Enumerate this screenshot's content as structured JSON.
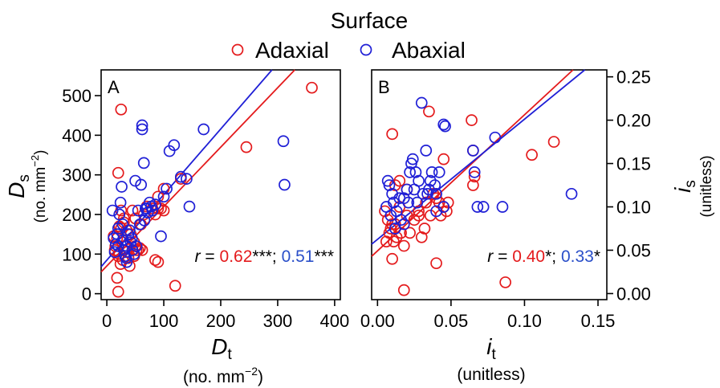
{
  "legend": {
    "title": "Surface",
    "items": [
      {
        "label": "Adaxial",
        "color": "#e41a1c"
      },
      {
        "label": "Abaxial",
        "color": "#1f1fd6"
      }
    ]
  },
  "colors": {
    "adaxial": "#e41a1c",
    "abaxial": "#1f1fd6",
    "stat_abaxial": "#2a4fc9"
  },
  "chart_data": [
    {
      "type": "scatter",
      "panel_label": "A",
      "xlabel": "D",
      "xlabel_sub": "t",
      "xunit": "(no. mm",
      "xunit_sup": "−2",
      "xunit_end": ")",
      "ylabel": "D",
      "ylabel_sub": "s",
      "yunit": "(no. mm",
      "yunit_sup": "−2",
      "yunit_end": ")",
      "xlim": [
        -10,
        410
      ],
      "ylim": [
        -15,
        565
      ],
      "xticks": [
        0,
        100,
        200,
        300,
        400
      ],
      "yticks": [
        0,
        100,
        200,
        300,
        400,
        500
      ],
      "xtick_labels": [
        "0",
        "100",
        "200",
        "300",
        "400"
      ],
      "ytick_labels": [
        "0",
        "100",
        "200",
        "300",
        "400",
        "500"
      ],
      "stats": {
        "r_label": "r",
        "eq": " = ",
        "adaxial": "0.62",
        "adaxial_sig": "***",
        "sep": "; ",
        "abaxial": "0.51",
        "abaxial_sig": "***"
      },
      "series": [
        {
          "name": "Adaxial",
          "color": "#e41a1c",
          "fit": [
            [
              -10,
              55
            ],
            [
              330,
              565
            ]
          ],
          "points": [
            [
              12,
              145
            ],
            [
              14,
              110
            ],
            [
              15,
              120
            ],
            [
              18,
              140
            ],
            [
              20,
              95
            ],
            [
              22,
              100
            ],
            [
              24,
              75
            ],
            [
              25,
              165
            ],
            [
              27,
              130
            ],
            [
              28,
              85
            ],
            [
              30,
              110
            ],
            [
              32,
              120
            ],
            [
              35,
              105
            ],
            [
              38,
              90
            ],
            [
              40,
              70
            ],
            [
              42,
              150
            ],
            [
              45,
              110
            ],
            [
              48,
              95
            ],
            [
              50,
              120
            ],
            [
              52,
              110
            ],
            [
              55,
              110
            ],
            [
              18,
              40
            ],
            [
              20,
              5
            ],
            [
              25,
              465
            ],
            [
              20,
              305
            ],
            [
              25,
              210
            ],
            [
              22,
              170
            ],
            [
              30,
              190
            ],
            [
              35,
              160
            ],
            [
              45,
              210
            ],
            [
              50,
              190
            ],
            [
              60,
              175
            ],
            [
              65,
              200
            ],
            [
              70,
              220
            ],
            [
              80,
              215
            ],
            [
              85,
              200
            ],
            [
              90,
              215
            ],
            [
              95,
              215
            ],
            [
              100,
              210
            ],
            [
              90,
              245
            ],
            [
              100,
              265
            ],
            [
              120,
              20
            ],
            [
              130,
              290
            ],
            [
              85,
              85
            ],
            [
              90,
              80
            ],
            [
              245,
              370
            ],
            [
              360,
              520
            ],
            [
              30,
              180
            ],
            [
              38,
              150
            ],
            [
              48,
              130
            ],
            [
              58,
              115
            ],
            [
              62,
              110
            ]
          ]
        },
        {
          "name": "Abaxial",
          "color": "#1f1fd6",
          "fit": [
            [
              -10,
              68
            ],
            [
              290,
              565
            ]
          ],
          "points": [
            [
              10,
              210
            ],
            [
              12,
              140
            ],
            [
              14,
              105
            ],
            [
              16,
              125
            ],
            [
              18,
              150
            ],
            [
              20,
              165
            ],
            [
              22,
              200
            ],
            [
              24,
              230
            ],
            [
              26,
              270
            ],
            [
              28,
              175
            ],
            [
              30,
              110
            ],
            [
              32,
              95
            ],
            [
              34,
              90
            ],
            [
              35,
              80
            ],
            [
              38,
              150
            ],
            [
              40,
              160
            ],
            [
              42,
              130
            ],
            [
              45,
              110
            ],
            [
              48,
              100
            ],
            [
              50,
              285
            ],
            [
              55,
              210
            ],
            [
              60,
              275
            ],
            [
              62,
              425
            ],
            [
              62,
              415
            ],
            [
              65,
              330
            ],
            [
              68,
              215
            ],
            [
              70,
              215
            ],
            [
              72,
              205
            ],
            [
              75,
              230
            ],
            [
              78,
              220
            ],
            [
              80,
              210
            ],
            [
              85,
              225
            ],
            [
              95,
              145
            ],
            [
              100,
              245
            ],
            [
              105,
              265
            ],
            [
              110,
              360
            ],
            [
              118,
              375
            ],
            [
              130,
              295
            ],
            [
              140,
              290
            ],
            [
              145,
              220
            ],
            [
              170,
              415
            ],
            [
              310,
              385
            ],
            [
              312,
              275
            ],
            [
              20,
              120
            ],
            [
              28,
              135
            ],
            [
              35,
              120
            ],
            [
              44,
              140
            ],
            [
              52,
              120
            ],
            [
              58,
              175
            ],
            [
              66,
              185
            ]
          ]
        }
      ]
    },
    {
      "type": "scatter",
      "panel_label": "B",
      "xlabel": "i",
      "xlabel_sub": "t",
      "xunit": "(unitless)",
      "ylabel": "i",
      "ylabel_sub": "s",
      "yunit": "(unitless)",
      "xlim": [
        -0.004,
        0.156
      ],
      "ylim": [
        -0.007,
        0.258
      ],
      "xticks": [
        0,
        0.05,
        0.1,
        0.15
      ],
      "yticks": [
        0,
        0.05,
        0.1,
        0.15,
        0.2,
        0.25
      ],
      "xtick_labels": [
        "0.00",
        "0.05",
        "0.10",
        "0.15"
      ],
      "ytick_labels": [
        "0.00",
        "0.05",
        "0.10",
        "0.15",
        "0.20",
        "0.25"
      ],
      "stats": {
        "r_label": "r",
        "eq": " = ",
        "adaxial": "0.40",
        "adaxial_sig": "*",
        "sep": "; ",
        "abaxial": "0.33",
        "abaxial_sig": "*"
      },
      "series": [
        {
          "name": "Adaxial",
          "color": "#e41a1c",
          "fit": [
            [
              -0.004,
              0.043
            ],
            [
              0.133,
              0.258
            ]
          ],
          "points": [
            [
              0.005,
              0.095
            ],
            [
              0.006,
              0.06
            ],
            [
              0.007,
              0.085
            ],
            [
              0.008,
              0.07
            ],
            [
              0.009,
              0.075
            ],
            [
              0.01,
              0.08
            ],
            [
              0.01,
              0.04
            ],
            [
              0.01,
              0.184
            ],
            [
              0.011,
              0.06
            ],
            [
              0.012,
              0.125
            ],
            [
              0.012,
              0.08
            ],
            [
              0.013,
              0.065
            ],
            [
              0.015,
              0.13
            ],
            [
              0.015,
              0.1
            ],
            [
              0.016,
              0.07
            ],
            [
              0.018,
              0.004
            ],
            [
              0.018,
              0.055
            ],
            [
              0.02,
              0.09
            ],
            [
              0.022,
              0.07
            ],
            [
              0.025,
              0.085
            ],
            [
              0.028,
              0.095
            ],
            [
              0.03,
              0.065
            ],
            [
              0.032,
              0.075
            ],
            [
              0.033,
              0.105
            ],
            [
              0.035,
              0.21
            ],
            [
              0.036,
              0.09
            ],
            [
              0.038,
              0.115
            ],
            [
              0.04,
              0.11
            ],
            [
              0.042,
              0.105
            ],
            [
              0.043,
              0.09
            ],
            [
              0.045,
              0.1
            ],
            [
              0.047,
              0.095
            ],
            [
              0.048,
              0.105
            ],
            [
              0.04,
              0.035
            ],
            [
              0.065,
              0.125
            ],
            [
              0.066,
              0.135
            ],
            [
              0.065,
              0.165
            ],
            [
              0.064,
              0.2
            ],
            [
              0.087,
              0.013
            ],
            [
              0.105,
              0.16
            ],
            [
              0.12,
              0.175
            ],
            [
              0.045,
              0.155
            ],
            [
              0.028,
              0.09
            ],
            [
              0.02,
              0.12
            ]
          ]
        },
        {
          "name": "Abaxial",
          "color": "#1f1fd6",
          "fit": [
            [
              -0.004,
              0.057
            ],
            [
              0.141,
              0.258
            ]
          ],
          "points": [
            [
              0.006,
              0.1
            ],
            [
              0.007,
              0.13
            ],
            [
              0.008,
              0.125
            ],
            [
              0.009,
              0.09
            ],
            [
              0.01,
              0.115
            ],
            [
              0.011,
              0.105
            ],
            [
              0.012,
              0.075
            ],
            [
              0.013,
              0.095
            ],
            [
              0.015,
              0.11
            ],
            [
              0.016,
              0.085
            ],
            [
              0.018,
              0.11
            ],
            [
              0.02,
              0.12
            ],
            [
              0.021,
              0.105
            ],
            [
              0.022,
              0.14
            ],
            [
              0.023,
              0.15
            ],
            [
              0.024,
              0.155
            ],
            [
              0.025,
              0.12
            ],
            [
              0.026,
              0.14
            ],
            [
              0.028,
              0.13
            ],
            [
              0.03,
              0.22
            ],
            [
              0.031,
              0.115
            ],
            [
              0.033,
              0.165
            ],
            [
              0.034,
              0.115
            ],
            [
              0.035,
              0.12
            ],
            [
              0.036,
              0.13
            ],
            [
              0.037,
              0.14
            ],
            [
              0.04,
              0.115
            ],
            [
              0.04,
              0.095
            ],
            [
              0.042,
              0.14
            ],
            [
              0.045,
              0.1
            ],
            [
              0.045,
              0.195
            ],
            [
              0.046,
              0.193
            ],
            [
              0.065,
              0.165
            ],
            [
              0.066,
              0.14
            ],
            [
              0.068,
              0.1
            ],
            [
              0.072,
              0.1
            ],
            [
              0.08,
              0.18
            ],
            [
              0.085,
              0.1
            ],
            [
              0.132,
              0.115
            ],
            [
              0.018,
              0.08
            ],
            [
              0.027,
              0.105
            ],
            [
              0.039,
              0.125
            ]
          ]
        }
      ]
    }
  ]
}
